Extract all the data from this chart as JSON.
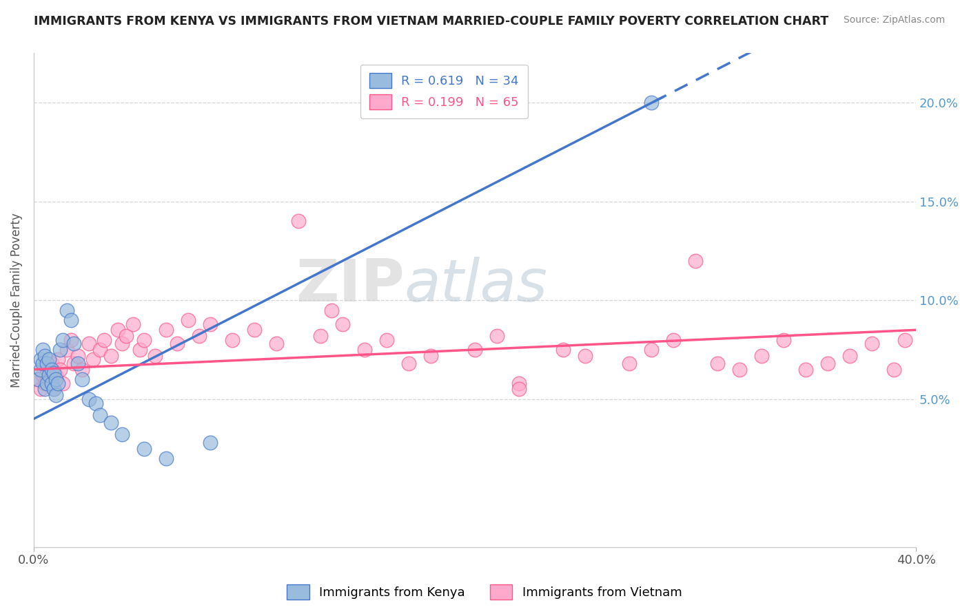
{
  "title": "IMMIGRANTS FROM KENYA VS IMMIGRANTS FROM VIETNAM MARRIED-COUPLE FAMILY POVERTY CORRELATION CHART",
  "source": "Source: ZipAtlas.com",
  "ylabel": "Married-Couple Family Poverty",
  "yticks": [
    0.05,
    0.1,
    0.15,
    0.2
  ],
  "ytick_labels": [
    "5.0%",
    "10.0%",
    "15.0%",
    "20.0%"
  ],
  "xlim": [
    0.0,
    0.4
  ],
  "ylim": [
    -0.025,
    0.225
  ],
  "kenya_R": 0.619,
  "kenya_N": 34,
  "vietnam_R": 0.199,
  "vietnam_N": 65,
  "kenya_color": "#99BBDD",
  "vietnam_color": "#FFAACC",
  "kenya_line_color": "#4477CC",
  "vietnam_line_color": "#FF5588",
  "watermark_zip": "ZIP",
  "watermark_atlas": "atlas",
  "kenya_x": [
    0.002,
    0.003,
    0.003,
    0.004,
    0.004,
    0.005,
    0.005,
    0.006,
    0.006,
    0.007,
    0.007,
    0.008,
    0.008,
    0.009,
    0.009,
    0.01,
    0.01,
    0.011,
    0.012,
    0.013,
    0.015,
    0.017,
    0.018,
    0.02,
    0.022,
    0.025,
    0.028,
    0.03,
    0.035,
    0.04,
    0.05,
    0.06,
    0.08,
    0.28
  ],
  "kenya_y": [
    0.06,
    0.065,
    0.07,
    0.068,
    0.075,
    0.055,
    0.072,
    0.058,
    0.068,
    0.062,
    0.07,
    0.058,
    0.065,
    0.055,
    0.063,
    0.052,
    0.06,
    0.058,
    0.075,
    0.08,
    0.095,
    0.09,
    0.078,
    0.068,
    0.06,
    0.05,
    0.048,
    0.042,
    0.038,
    0.032,
    0.025,
    0.02,
    0.028,
    0.2
  ],
  "vietnam_x": [
    0.002,
    0.003,
    0.004,
    0.005,
    0.006,
    0.007,
    0.008,
    0.009,
    0.01,
    0.011,
    0.012,
    0.013,
    0.015,
    0.017,
    0.018,
    0.02,
    0.022,
    0.025,
    0.027,
    0.03,
    0.032,
    0.035,
    0.038,
    0.04,
    0.042,
    0.045,
    0.048,
    0.05,
    0.055,
    0.06,
    0.065,
    0.07,
    0.075,
    0.08,
    0.09,
    0.1,
    0.11,
    0.12,
    0.13,
    0.14,
    0.15,
    0.16,
    0.17,
    0.18,
    0.2,
    0.21,
    0.22,
    0.24,
    0.25,
    0.27,
    0.28,
    0.29,
    0.3,
    0.31,
    0.32,
    0.33,
    0.34,
    0.35,
    0.36,
    0.37,
    0.38,
    0.39,
    0.395,
    0.22,
    0.135
  ],
  "vietnam_y": [
    0.06,
    0.055,
    0.062,
    0.058,
    0.065,
    0.06,
    0.068,
    0.055,
    0.062,
    0.07,
    0.065,
    0.058,
    0.075,
    0.08,
    0.068,
    0.072,
    0.065,
    0.078,
    0.07,
    0.075,
    0.08,
    0.072,
    0.085,
    0.078,
    0.082,
    0.088,
    0.075,
    0.08,
    0.072,
    0.085,
    0.078,
    0.09,
    0.082,
    0.088,
    0.08,
    0.085,
    0.078,
    0.14,
    0.082,
    0.088,
    0.075,
    0.08,
    0.068,
    0.072,
    0.075,
    0.082,
    0.058,
    0.075,
    0.072,
    0.068,
    0.075,
    0.08,
    0.12,
    0.068,
    0.065,
    0.072,
    0.08,
    0.065,
    0.068,
    0.072,
    0.078,
    0.065,
    0.08,
    0.055,
    0.095
  ]
}
